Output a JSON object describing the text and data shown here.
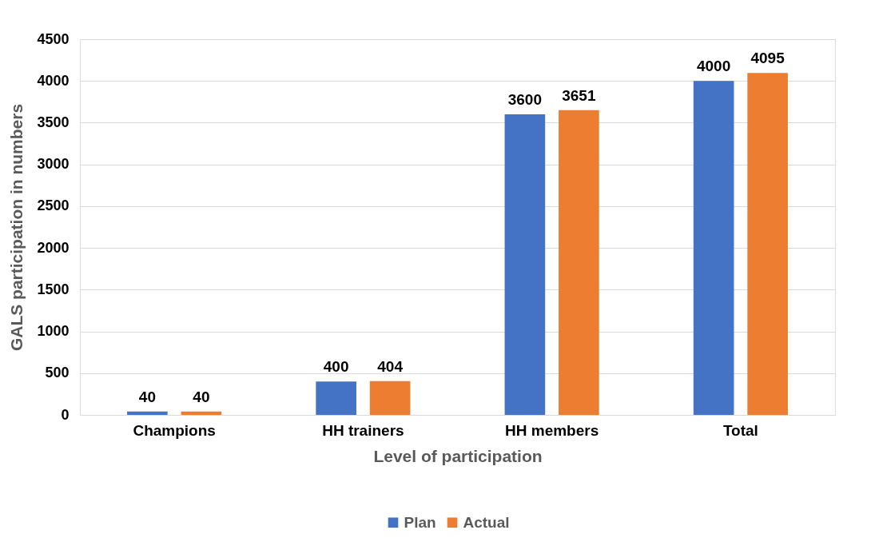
{
  "chart_data": {
    "type": "bar",
    "xlabel": "Level of participation",
    "ylabel": "GALS participation in numbers",
    "categories": [
      "Champions",
      "HH trainers",
      "HH members",
      "Total"
    ],
    "series": [
      {
        "name": "Plan",
        "color": "#4472c4",
        "values": [
          40,
          400,
          3600,
          4000
        ]
      },
      {
        "name": "Actual",
        "color": "#ed7d31",
        "values": [
          40,
          404,
          3651,
          4095
        ]
      }
    ],
    "ylim": [
      0,
      4500
    ],
    "yticks": [
      0,
      500,
      1000,
      1500,
      2000,
      2500,
      3000,
      3500,
      4000,
      4500
    ],
    "grid": "y",
    "legend": "bottom",
    "data_labels": true
  }
}
